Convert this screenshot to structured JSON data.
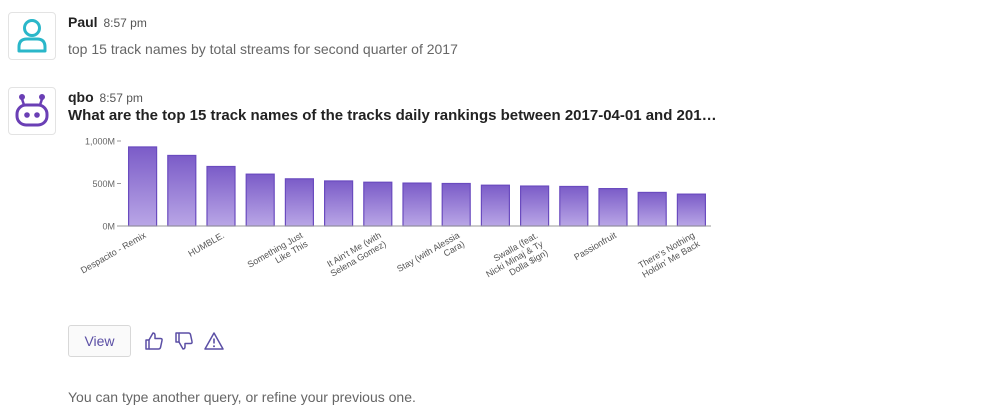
{
  "messages": [
    {
      "author": "Paul",
      "time": "8:57 pm",
      "text": "top 15 track names by total streams for second quarter of 2017"
    },
    {
      "author": "qbo",
      "time": "8:57 pm",
      "question": "What are the top 15 track names of the tracks daily rankings between 2017-04-01 and 2017-0..."
    }
  ],
  "actions": {
    "view_label": "View",
    "thumbs_up_icon": "thumbs-up-icon",
    "thumbs_down_icon": "thumbs-down-icon",
    "warning_icon": "warning-icon"
  },
  "footer": {
    "note": "You can type another query, or refine your previous one."
  },
  "colors": {
    "bar_top": "#7b5cc8",
    "bar_bottom": "#b9a6e6",
    "bar_stroke": "#6a4bbf",
    "user_icon": "#2ab7c9",
    "bot_icon": "#6a3fb5",
    "accent": "#5b4fa5"
  },
  "chart_data": {
    "type": "bar",
    "categories": [
      "Despacito - Remix",
      "",
      "HUMBLE.",
      "",
      "Something Just Like This",
      "",
      "It Ain't Me (with Selena Gomez)",
      "",
      "Stay (with Alessia Cara)",
      "",
      "Swalla (feat. Nicki Minaj & Ty Dolla $ign)",
      "",
      "Passionfruit",
      "",
      "There's Nothing Holdin' Me Back"
    ],
    "values": [
      930,
      830,
      700,
      610,
      555,
      530,
      515,
      505,
      500,
      480,
      470,
      465,
      440,
      395,
      375
    ],
    "yticks": [
      "0M",
      "500M",
      "1,000M"
    ],
    "ylim": [
      0,
      1000
    ],
    "grid": false
  }
}
